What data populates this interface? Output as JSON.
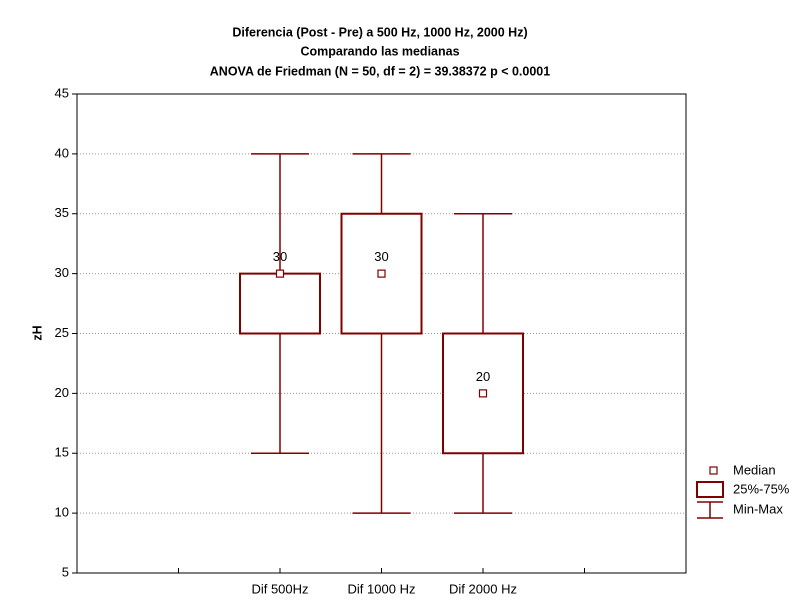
{
  "chart_data": {
    "type": "box",
    "title": [
      "Diferencia (Post - Pre) a 500 Hz, 1000 Hz, 2000 Hz)",
      "Comparando las medianas",
      "ANOVA de Friedman (N = 50, df = 2) = 39.38372 p < 0.0001"
    ],
    "ylabel": "zH",
    "categories": [
      null,
      "Dif 500Hz",
      "Dif 1000 Hz",
      "Dif 2000 Hz",
      null
    ],
    "series": [
      {
        "color": "#800000",
        "min": [
          null,
          15,
          10,
          10,
          null
        ],
        "q1": [
          null,
          25,
          25,
          15,
          null
        ],
        "median": [
          null,
          30,
          30,
          20,
          null
        ],
        "q3": [
          null,
          30,
          35,
          25,
          null
        ],
        "max": [
          null,
          40,
          40,
          35,
          null
        ]
      }
    ],
    "legend": {
      "position": "bottom-right",
      "entries": [
        "Median",
        "25%-75%",
        "Min-Max"
      ]
    },
    "ylim": [
      5,
      45
    ],
    "yticks": [
      5,
      10,
      15,
      20,
      25,
      30,
      35,
      40,
      45
    ],
    "grid": true
  }
}
